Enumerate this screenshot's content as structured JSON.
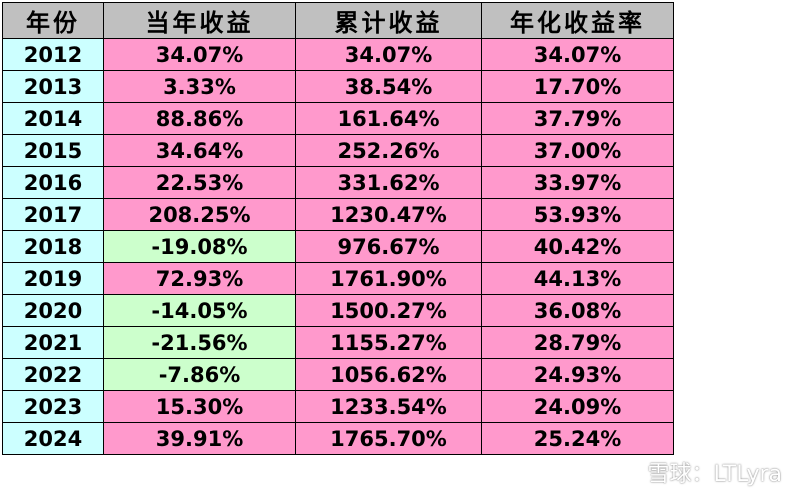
{
  "table": {
    "headers": [
      "年份",
      "当年收益",
      "累计收益",
      "年化收益率"
    ],
    "rows": [
      {
        "year": "2012",
        "annual": "34.07%",
        "cumulative": "34.07%",
        "annualized": "34.07%",
        "annual_negative": false
      },
      {
        "year": "2013",
        "annual": "3.33%",
        "cumulative": "38.54%",
        "annualized": "17.70%",
        "annual_negative": false
      },
      {
        "year": "2014",
        "annual": "88.86%",
        "cumulative": "161.64%",
        "annualized": "37.79%",
        "annual_negative": false
      },
      {
        "year": "2015",
        "annual": "34.64%",
        "cumulative": "252.26%",
        "annualized": "37.00%",
        "annual_negative": false
      },
      {
        "year": "2016",
        "annual": "22.53%",
        "cumulative": "331.62%",
        "annualized": "33.97%",
        "annual_negative": false
      },
      {
        "year": "2017",
        "annual": "208.25%",
        "cumulative": "1230.47%",
        "annualized": "53.93%",
        "annual_negative": false
      },
      {
        "year": "2018",
        "annual": "-19.08%",
        "cumulative": "976.67%",
        "annualized": "40.42%",
        "annual_negative": true
      },
      {
        "year": "2019",
        "annual": "72.93%",
        "cumulative": "1761.90%",
        "annualized": "44.13%",
        "annual_negative": false
      },
      {
        "year": "2020",
        "annual": "-14.05%",
        "cumulative": "1500.27%",
        "annualized": "36.08%",
        "annual_negative": true
      },
      {
        "year": "2021",
        "annual": "-21.56%",
        "cumulative": "1155.27%",
        "annualized": "28.79%",
        "annual_negative": true
      },
      {
        "year": "2022",
        "annual": "-7.86%",
        "cumulative": "1056.62%",
        "annualized": "24.93%",
        "annual_negative": true
      },
      {
        "year": "2023",
        "annual": "15.30%",
        "cumulative": "1233.54%",
        "annualized": "24.09%",
        "annual_negative": false
      },
      {
        "year": "2024",
        "annual": "39.91%",
        "cumulative": "1765.70%",
        "annualized": "25.24%",
        "annual_negative": false
      }
    ]
  },
  "colors": {
    "header_bg": "#c0c0c0",
    "year_bg": "#ccffff",
    "positive_bg": "#ff99cc",
    "negative_bg": "#ccffcc"
  },
  "watermark": {
    "text": "雪球：LTLyra",
    "icon": "xueqiu-logo-icon"
  }
}
